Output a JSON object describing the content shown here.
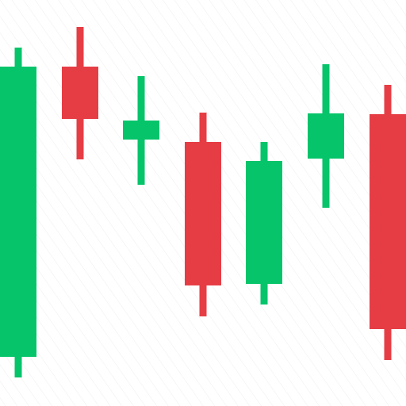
{
  "chart_data": {
    "type": "candlestick",
    "title": "",
    "xlabel": "",
    "ylabel": "",
    "ylim": [
      0,
      512
    ],
    "grid": false,
    "legend": "none",
    "colors": {
      "up": "#06c46a",
      "down": "#e63d45",
      "hatch": "#eeeeee"
    },
    "candles": [
      {
        "direction": "up",
        "open": 62,
        "close": 428,
        "high": 452,
        "low": 36
      },
      {
        "direction": "down",
        "open": 428,
        "close": 362,
        "high": 478,
        "low": 311
      },
      {
        "direction": "up",
        "open": 336,
        "close": 360,
        "high": 416,
        "low": 279
      },
      {
        "direction": "down",
        "open": 333,
        "close": 152,
        "high": 370,
        "low": 113
      },
      {
        "direction": "up",
        "open": 154,
        "close": 309,
        "high": 333,
        "low": 128
      },
      {
        "direction": "up",
        "open": 312,
        "close": 369,
        "high": 431,
        "low": 250
      },
      {
        "direction": "down",
        "open": 368,
        "close": 97,
        "high": 405,
        "low": 58
      }
    ]
  }
}
